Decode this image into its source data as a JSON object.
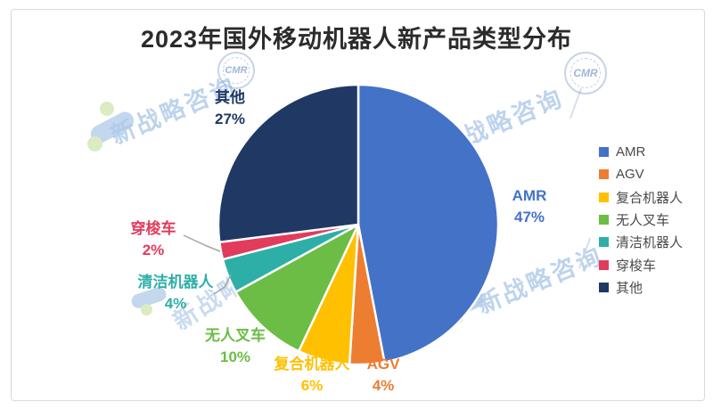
{
  "title": "2023年国外移动机器人新产品类型分布",
  "watermark": {
    "brand_text": "新战略咨询",
    "stamp_text": "CMR"
  },
  "chart_data": {
    "type": "pie",
    "title": "2023年国外移动机器人新产品类型分布",
    "unit": "%",
    "start_angle_deg": 0,
    "direction": "clockwise",
    "legend_position": "right",
    "slices": [
      {
        "label": "AMR",
        "value": 47,
        "pct_label": "47%",
        "color": "#4472C7"
      },
      {
        "label": "AGV",
        "value": 4,
        "pct_label": "4%",
        "color": "#ED7D31"
      },
      {
        "label": "复合机器人",
        "value": 6,
        "pct_label": "6%",
        "color": "#FFC000"
      },
      {
        "label": "无人叉车",
        "value": 10,
        "pct_label": "10%",
        "color": "#6CBD45"
      },
      {
        "label": "清洁机器人",
        "value": 4,
        "pct_label": "4%",
        "color": "#2DAFA7"
      },
      {
        "label": "穿梭车",
        "value": 2,
        "pct_label": "2%",
        "color": "#E13C5C"
      },
      {
        "label": "其他",
        "value": 27,
        "pct_label": "27%",
        "color": "#203864"
      }
    ]
  }
}
